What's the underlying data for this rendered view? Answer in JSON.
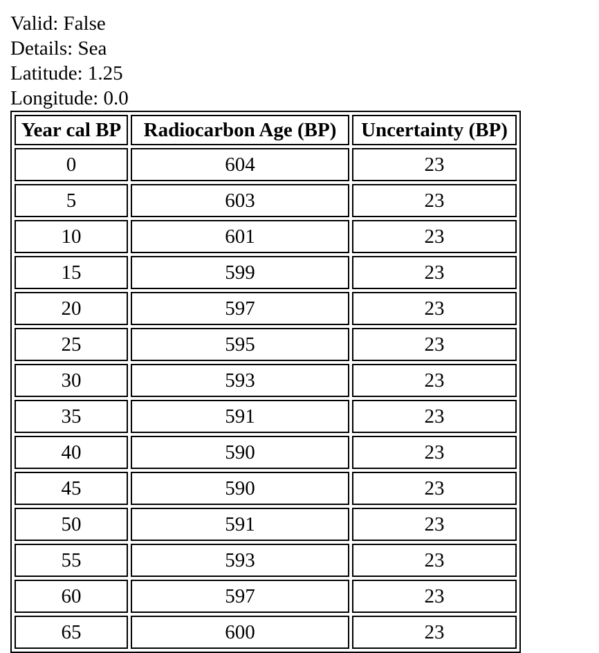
{
  "info": {
    "valid": "Valid: False",
    "details": "Details: Sea",
    "latitude": "Latitude: 1.25",
    "longitude": "Longitude: 0.0"
  },
  "table": {
    "headers": [
      "Year cal BP",
      "Radiocarbon Age (BP)",
      "Uncertainty (BP)"
    ],
    "rows": [
      [
        "0",
        "604",
        "23"
      ],
      [
        "5",
        "603",
        "23"
      ],
      [
        "10",
        "601",
        "23"
      ],
      [
        "15",
        "599",
        "23"
      ],
      [
        "20",
        "597",
        "23"
      ],
      [
        "25",
        "595",
        "23"
      ],
      [
        "30",
        "593",
        "23"
      ],
      [
        "35",
        "591",
        "23"
      ],
      [
        "40",
        "590",
        "23"
      ],
      [
        "45",
        "590",
        "23"
      ],
      [
        "50",
        "591",
        "23"
      ],
      [
        "55",
        "593",
        "23"
      ],
      [
        "60",
        "597",
        "23"
      ],
      [
        "65",
        "600",
        "23"
      ]
    ]
  }
}
